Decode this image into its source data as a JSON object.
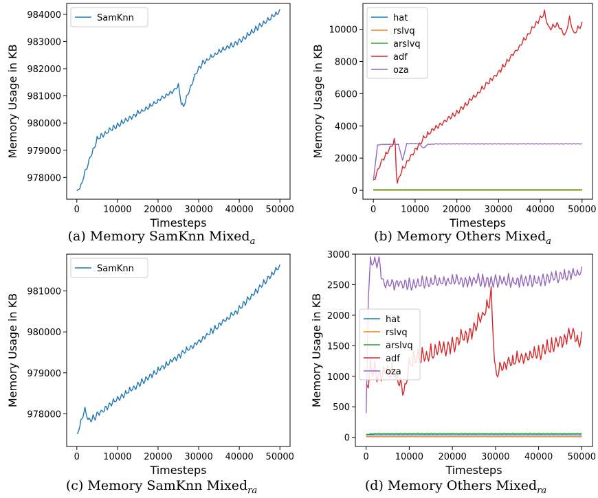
{
  "chart_data": [
    {
      "id": "a",
      "type": "line",
      "caption": "(a) Memory SamKnn Mixed",
      "caption_sub": "a",
      "xlabel": "Timesteps",
      "ylabel": "Memory Usage in KB",
      "xlim": [
        -2500,
        52500
      ],
      "ylim": [
        977200,
        984400
      ],
      "xticks": [
        0,
        10000,
        20000,
        30000,
        40000,
        50000
      ],
      "yticks": [
        978000,
        979000,
        980000,
        981000,
        982000,
        983000,
        984000
      ],
      "legend": "upper left",
      "series": [
        {
          "name": "SamKnn",
          "color": "#1f77b4",
          "x": [
            0,
            1000,
            2000,
            3000,
            4000,
            5000,
            7000,
            10000,
            15000,
            20000,
            24000,
            25000,
            25800,
            26200,
            27000,
            28000,
            29500,
            31000,
            35000,
            40000,
            45000,
            50000
          ],
          "y": [
            977450,
            977700,
            978150,
            978600,
            979000,
            979400,
            979600,
            979900,
            980350,
            980800,
            981200,
            981400,
            980650,
            980600,
            980900,
            981300,
            981900,
            982200,
            982600,
            983000,
            983550,
            984100
          ],
          "sawtooth": 150
        }
      ]
    },
    {
      "id": "b",
      "type": "line",
      "caption": "(b) Memory Others Mixed",
      "caption_sub": "a",
      "xlabel": "Timesteps",
      "ylabel": "Memory Usage in KB",
      "xlim": [
        -2500,
        52500
      ],
      "ylim": [
        -550,
        11600
      ],
      "xticks": [
        0,
        10000,
        20000,
        30000,
        40000,
        50000
      ],
      "yticks": [
        0,
        2000,
        4000,
        6000,
        8000,
        10000
      ],
      "legend": "upper left",
      "series": [
        {
          "name": "hat",
          "color": "#1f77b4",
          "x": [
            0,
            50000
          ],
          "y": [
            30,
            30
          ],
          "sawtooth": 0
        },
        {
          "name": "rslvq",
          "color": "#ff7f0e",
          "x": [
            0,
            50000
          ],
          "y": [
            10,
            10
          ],
          "sawtooth": 0
        },
        {
          "name": "arslvq",
          "color": "#2ca02c",
          "x": [
            0,
            50000
          ],
          "y": [
            40,
            40
          ],
          "sawtooth": 0
        },
        {
          "name": "adf",
          "color": "#d62728",
          "x": [
            0,
            2000,
            4000,
            5200,
            5600,
            7000,
            9000,
            12000,
            15000,
            20000,
            25000,
            30000,
            35000,
            38000,
            41000,
            42000,
            44000,
            46000,
            47000,
            48000,
            50000
          ],
          "y": [
            500,
            1800,
            2600,
            3100,
            400,
            1300,
            2100,
            3200,
            3900,
            4800,
            6000,
            7300,
            8900,
            10000,
            11000,
            10000,
            10300,
            9600,
            10700,
            9700,
            10300
          ],
          "sawtooth": 250
        },
        {
          "name": "oza",
          "color": "#9467bd",
          "x": [
            0,
            1000,
            2000,
            6000,
            7000,
            8000,
            11000,
            12000,
            13000,
            15000,
            50000
          ],
          "y": [
            600,
            2800,
            2850,
            2850,
            1850,
            2900,
            2900,
            2600,
            2850,
            2880,
            2880
          ],
          "sawtooth": 25
        }
      ]
    },
    {
      "id": "c",
      "type": "line",
      "caption": "(c) Memory SamKnn Mixed",
      "caption_sub": "ra",
      "xlabel": "Timesteps",
      "ylabel": "Memory Usage in KB",
      "xlim": [
        -2500,
        52500
      ],
      "ylim": [
        977200,
        981900
      ],
      "xticks": [
        0,
        10000,
        20000,
        30000,
        40000,
        50000
      ],
      "yticks": [
        978000,
        979000,
        980000,
        981000
      ],
      "legend": "upper left",
      "series": [
        {
          "name": "SamKnn",
          "color": "#1f77b4",
          "x": [
            0,
            1000,
            2000,
            2500,
            3000,
            10000,
            20000,
            30000,
            40000,
            50000
          ],
          "y": [
            977450,
            977800,
            978100,
            977950,
            977800,
            978350,
            979050,
            979750,
            980550,
            981600
          ],
          "sawtooth": 120
        }
      ]
    },
    {
      "id": "d",
      "type": "line",
      "caption": "(d) Memory Others Mixed",
      "caption_sub": "ra",
      "xlabel": "Timesteps",
      "ylabel": "Memory Usage in KB",
      "xlim": [
        -2500,
        52500
      ],
      "ylim": [
        -150,
        3000
      ],
      "xticks": [
        0,
        10000,
        20000,
        30000,
        40000,
        50000
      ],
      "yticks": [
        0,
        500,
        1000,
        1500,
        2000,
        2500,
        3000
      ],
      "legend": "center left",
      "series": [
        {
          "name": "hat",
          "color": "#1f77b4",
          "x": [
            0,
            50000
          ],
          "y": [
            40,
            40
          ],
          "sawtooth": 0
        },
        {
          "name": "rslvq",
          "color": "#ff7f0e",
          "x": [
            0,
            50000
          ],
          "y": [
            10,
            10
          ],
          "sawtooth": 0
        },
        {
          "name": "arslvq",
          "color": "#2ca02c",
          "x": [
            0,
            2000,
            50000
          ],
          "y": [
            45,
            60,
            60
          ],
          "sawtooth": 8
        },
        {
          "name": "adf",
          "color": "#d62728",
          "x": [
            0,
            1000,
            3000,
            6000,
            9000,
            10000,
            13000,
            17000,
            20000,
            24000,
            27000,
            29000,
            30000,
            31000,
            33000,
            37000,
            40000,
            44000,
            46000,
            48000,
            49000,
            50000
          ],
          "y": [
            700,
            1100,
            1000,
            1100,
            700,
            1200,
            1300,
            1400,
            1500,
            1700,
            1950,
            2300,
            1000,
            1100,
            1200,
            1300,
            1350,
            1500,
            1600,
            1700,
            1500,
            1650
          ],
          "sawtooth": 220
        },
        {
          "name": "oza",
          "color": "#9467bd",
          "x": [
            0,
            500,
            1000,
            3000,
            4000,
            10000,
            20000,
            30000,
            40000,
            50000
          ],
          "y": [
            300,
            2300,
            2850,
            2850,
            2500,
            2500,
            2550,
            2550,
            2550,
            2700
          ],
          "sawtooth": 160
        }
      ]
    }
  ]
}
